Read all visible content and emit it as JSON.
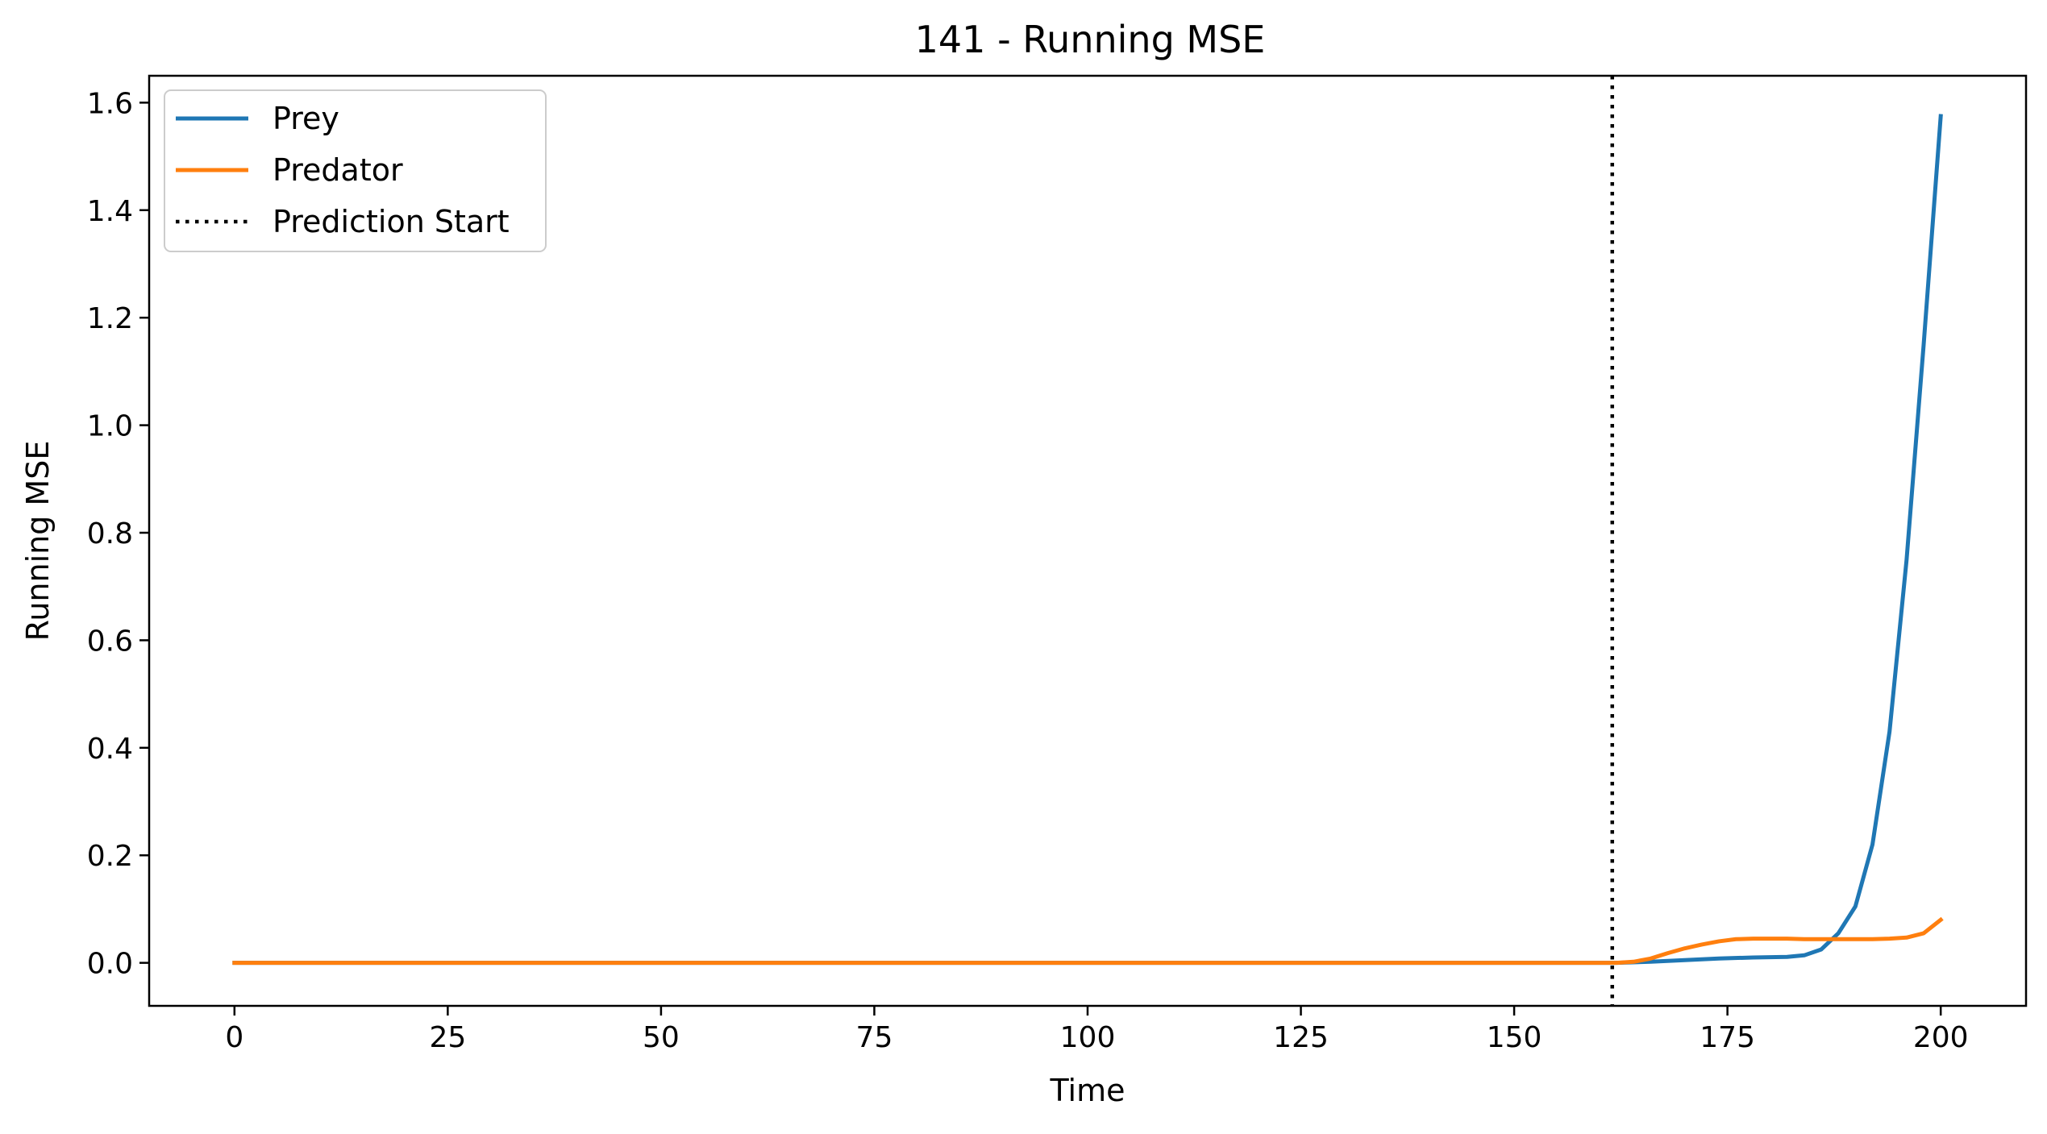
{
  "chart_data": {
    "type": "line",
    "title": "141 - Running MSE",
    "xlabel": "Time",
    "ylabel": "Running MSE",
    "xlim": [
      -10,
      210
    ],
    "ylim": [
      -0.08,
      1.65
    ],
    "xticks": [
      0,
      25,
      50,
      75,
      100,
      125,
      150,
      175,
      200
    ],
    "yticks": [
      0.0,
      0.2,
      0.4,
      0.6,
      0.8,
      1.0,
      1.2,
      1.4,
      1.6
    ],
    "xtick_labels": [
      "0",
      "25",
      "50",
      "75",
      "100",
      "125",
      "150",
      "175",
      "200"
    ],
    "ytick_labels": [
      "0.0",
      "0.2",
      "0.4",
      "0.6",
      "0.8",
      "1.0",
      "1.2",
      "1.4",
      "1.6"
    ],
    "grid": false,
    "legend_position": "top-left",
    "series": [
      {
        "name": "Prey",
        "color": "#1f77b4",
        "x": [
          0,
          162,
          166,
          170,
          174,
          178,
          182,
          184,
          186,
          188,
          190,
          192,
          194,
          196,
          198,
          200
        ],
        "values": [
          0.0,
          0.0,
          0.002,
          0.005,
          0.008,
          0.01,
          0.011,
          0.014,
          0.025,
          0.055,
          0.105,
          0.22,
          0.43,
          0.75,
          1.15,
          1.575
        ]
      },
      {
        "name": "Predator",
        "color": "#ff7f0e",
        "x": [
          0,
          162,
          164,
          166,
          168,
          170,
          172,
          174,
          176,
          178,
          180,
          182,
          184,
          186,
          188,
          190,
          192,
          194,
          196,
          198,
          200
        ],
        "values": [
          0.0,
          0.0,
          0.002,
          0.008,
          0.018,
          0.027,
          0.034,
          0.04,
          0.044,
          0.045,
          0.045,
          0.045,
          0.044,
          0.044,
          0.044,
          0.044,
          0.044,
          0.045,
          0.047,
          0.055,
          0.08
        ]
      }
    ],
    "vline": {
      "name": "Prediction Start",
      "x": 161.5,
      "color": "#000000",
      "style": "dotted"
    }
  }
}
